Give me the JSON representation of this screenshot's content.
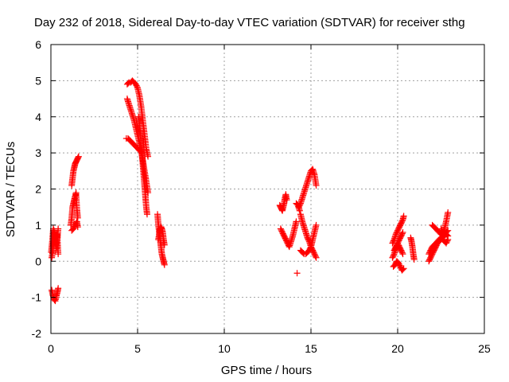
{
  "chart_data": {
    "type": "scatter",
    "title": "Day 232 of 2018, Sidereal Day-to-day VTEC variation (SDTVAR) for receiver sthg",
    "xlabel": "GPS time / hours",
    "ylabel": "SDTVAR / TECUs",
    "xlim": [
      0,
      25
    ],
    "ylim": [
      -2,
      6
    ],
    "xticks": [
      "0",
      "5",
      "10",
      "15",
      "20",
      "25"
    ],
    "yticks": [
      "-2",
      "-1",
      "0",
      "1",
      "2",
      "3",
      "4",
      "5",
      "6"
    ],
    "grid": true,
    "marker": "+",
    "color": "#ff0000",
    "segments": [
      {
        "x": [
          0.02,
          0.08,
          0.14,
          0.2,
          0.26,
          0.32,
          0.38,
          0.42
        ],
        "y": [
          0.25,
          0.55,
          0.9,
          0.75,
          0.5,
          0.35,
          0.65,
          0.9
        ]
      },
      {
        "x": [
          0.05,
          0.12,
          0.18,
          0.24,
          0.3,
          0.36,
          0.42
        ],
        "y": [
          0.1,
          0.3,
          0.85,
          0.6,
          0.45,
          0.75,
          0.2
        ]
      },
      {
        "x": [
          0.05,
          0.12,
          0.18,
          0.25,
          0.32,
          0.38,
          0.42
        ],
        "y": [
          -0.8,
          -0.95,
          -1.05,
          -1.1,
          -0.95,
          -0.85,
          -0.75
        ]
      },
      {
        "x": [
          1.2,
          1.25,
          1.3,
          1.35,
          1.4,
          1.45,
          1.5,
          1.55,
          1.6
        ],
        "y": [
          2.1,
          2.3,
          2.5,
          2.6,
          2.7,
          2.75,
          2.8,
          2.85,
          2.9
        ]
      },
      {
        "x": [
          1.15,
          1.2,
          1.25,
          1.3,
          1.35,
          1.4,
          1.45,
          1.5,
          1.55
        ],
        "y": [
          1.0,
          1.2,
          1.5,
          1.6,
          1.7,
          1.8,
          1.9,
          1.45,
          1.2
        ]
      },
      {
        "x": [
          1.2,
          1.3,
          1.4,
          1.5,
          1.55
        ],
        "y": [
          0.85,
          0.9,
          1.0,
          1.1,
          0.95
        ]
      },
      {
        "x": [
          4.4,
          4.5,
          4.6,
          4.7,
          4.8,
          4.9,
          5.0,
          5.1,
          5.2,
          5.3,
          5.4,
          5.5,
          5.6
        ],
        "y": [
          4.9,
          4.95,
          4.95,
          5.0,
          4.95,
          4.9,
          4.8,
          4.6,
          4.3,
          3.9,
          3.5,
          3.1,
          2.9
        ]
      },
      {
        "x": [
          4.4,
          4.5,
          4.6,
          4.7,
          4.8,
          4.9,
          5.0,
          5.1,
          5.2,
          5.3,
          5.4,
          5.5,
          5.6
        ],
        "y": [
          4.5,
          4.35,
          4.2,
          4.05,
          3.9,
          3.7,
          3.5,
          3.3,
          3.1,
          2.8,
          2.5,
          2.2,
          1.9
        ]
      },
      {
        "x": [
          4.35,
          4.45,
          4.55,
          4.65,
          4.75,
          4.85,
          4.95,
          5.05,
          5.15,
          5.25
        ],
        "y": [
          3.4,
          3.4,
          3.35,
          3.3,
          3.25,
          3.2,
          3.15,
          3.1,
          3.05,
          3.0
        ]
      },
      {
        "x": [
          5.05,
          5.1,
          5.15,
          5.2,
          5.25,
          5.3,
          5.35,
          5.4,
          5.45,
          5.5,
          5.55
        ],
        "y": [
          4.0,
          3.8,
          3.6,
          3.3,
          3.0,
          2.7,
          2.4,
          2.1,
          1.8,
          1.5,
          1.3
        ]
      },
      {
        "x": [
          6.15,
          6.2,
          6.25,
          6.3,
          6.35,
          6.4,
          6.45,
          6.5,
          6.55
        ],
        "y": [
          1.3,
          1.0,
          0.8,
          0.6,
          0.4,
          0.2,
          0.1,
          0.0,
          -0.1
        ]
      },
      {
        "x": [
          6.2,
          6.25,
          6.3,
          6.35,
          6.4,
          6.45,
          6.5,
          6.55
        ],
        "y": [
          0.6,
          0.75,
          0.9,
          0.95,
          0.9,
          0.8,
          0.6,
          0.45
        ]
      },
      {
        "x": [
          13.2,
          13.25,
          13.3,
          13.35,
          13.4,
          13.45,
          13.5,
          13.55,
          13.6
        ],
        "y": [
          1.55,
          1.5,
          1.45,
          1.4,
          1.5,
          1.6,
          1.75,
          1.85,
          1.7
        ]
      },
      {
        "x": [
          13.25,
          13.35,
          13.45,
          13.55,
          13.65,
          13.75,
          13.85,
          13.95,
          14.05,
          14.15
        ],
        "y": [
          0.9,
          0.8,
          0.7,
          0.6,
          0.5,
          0.4,
          0.55,
          0.7,
          0.9,
          1.1
        ]
      },
      {
        "x": [
          14.3,
          14.4,
          14.5,
          14.6,
          14.7,
          14.8,
          14.9,
          15.0,
          15.1,
          15.2,
          15.3
        ],
        "y": [
          1.5,
          1.6,
          1.75,
          1.9,
          2.05,
          2.2,
          2.35,
          2.5,
          2.55,
          2.4,
          2.1
        ]
      },
      {
        "x": [
          14.4,
          14.5,
          14.6,
          14.7,
          14.8,
          14.9,
          15.0,
          15.1,
          15.2,
          15.3
        ],
        "y": [
          0.3,
          0.25,
          0.2,
          0.2,
          0.25,
          0.3,
          0.4,
          0.6,
          0.8,
          1.0
        ]
      },
      {
        "x": [
          14.4,
          14.5,
          14.6,
          14.7,
          14.8,
          14.9,
          15.0,
          15.1,
          15.2,
          15.3
        ],
        "y": [
          1.3,
          1.1,
          0.95,
          0.8,
          0.65,
          0.55,
          0.4,
          0.3,
          0.2,
          0.1
        ]
      },
      {
        "x": [
          14.15,
          14.25,
          14.35
        ],
        "y": [
          1.6,
          1.55,
          1.4
        ]
      },
      {
        "x": [
          14.2
        ],
        "y": [
          -0.33
        ]
      },
      {
        "x": [
          19.7,
          19.8,
          19.9,
          20.0,
          20.1,
          20.2,
          20.3,
          20.35
        ],
        "y": [
          0.5,
          0.6,
          0.75,
          0.85,
          0.95,
          1.05,
          1.15,
          1.25
        ]
      },
      {
        "x": [
          19.7,
          19.8,
          19.9,
          20.0,
          20.1,
          20.2,
          20.3
        ],
        "y": [
          0.1,
          0.2,
          0.35,
          0.5,
          0.6,
          0.7,
          0.8
        ]
      },
      {
        "x": [
          19.75,
          19.85,
          19.95,
          20.05,
          20.15,
          20.25,
          20.35
        ],
        "y": [
          -0.15,
          -0.1,
          0.0,
          -0.05,
          -0.15,
          -0.25,
          -0.2
        ]
      },
      {
        "x": [
          19.8,
          19.9,
          20.0,
          20.1,
          20.2,
          20.3
        ],
        "y": [
          0.3,
          0.4,
          0.5,
          0.4,
          0.3,
          0.2
        ]
      },
      {
        "x": [
          20.75,
          20.8,
          20.85,
          20.9,
          20.95
        ],
        "y": [
          0.65,
          0.55,
          0.4,
          0.2,
          0.05
        ]
      },
      {
        "x": [
          21.8,
          21.9,
          22.0,
          22.1,
          22.2,
          22.3,
          22.4,
          22.5,
          22.6,
          22.7,
          22.8,
          22.9
        ],
        "y": [
          0.2,
          0.3,
          0.4,
          0.45,
          0.5,
          0.55,
          0.6,
          0.65,
          0.7,
          0.75,
          0.8,
          0.85
        ]
      },
      {
        "x": [
          21.8,
          21.9,
          22.0,
          22.1,
          22.2,
          22.3,
          22.4,
          22.5,
          22.6,
          22.7,
          22.8,
          22.9
        ],
        "y": [
          0.0,
          0.1,
          0.2,
          0.3,
          0.4,
          0.5,
          0.55,
          0.6,
          0.6,
          0.55,
          0.5,
          0.6
        ]
      },
      {
        "x": [
          22.0,
          22.1,
          22.2,
          22.3,
          22.4,
          22.5,
          22.6,
          22.7,
          22.8,
          22.9
        ],
        "y": [
          1.0,
          0.95,
          0.9,
          0.85,
          0.8,
          0.75,
          0.8,
          0.9,
          1.1,
          1.35
        ]
      },
      {
        "x": [
          22.5,
          22.6,
          22.7,
          22.8,
          22.9
        ],
        "y": [
          0.9,
          0.8,
          0.7,
          0.75,
          0.7
        ]
      }
    ]
  }
}
